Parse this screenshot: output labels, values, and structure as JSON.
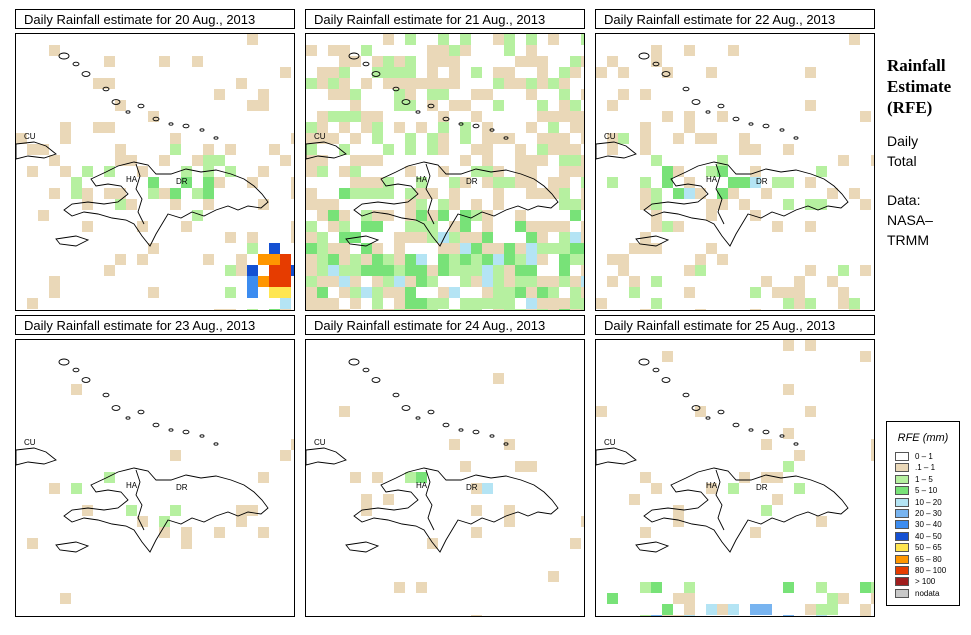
{
  "side": {
    "title_line1": "Rainfall",
    "title_line2": "Estimate",
    "title_line3": "(RFE)",
    "daily": "Daily",
    "total": "Total",
    "data_label": "Data:",
    "source_line1": "NASA–",
    "source_line2": "TRMM"
  },
  "legend": {
    "title": "RFE (mm)",
    "items": [
      {
        "label": "0 – 1",
        "color": "#ffffff"
      },
      {
        "label": ".1 – 1",
        "color": "#ead8b8"
      },
      {
        "label": "1 – 5",
        "color": "#b6f0a0"
      },
      {
        "label": "5 – 10",
        "color": "#78e278"
      },
      {
        "label": "10 – 20",
        "color": "#b4e4f4"
      },
      {
        "label": "20 – 30",
        "color": "#78b4f0"
      },
      {
        "label": "30 – 40",
        "color": "#3c8cf0"
      },
      {
        "label": "40 – 50",
        "color": "#1450d2"
      },
      {
        "label": "50 – 65",
        "color": "#ffe650"
      },
      {
        "label": "65 – 80",
        "color": "#ff9600"
      },
      {
        "label": "80 – 100",
        "color": "#e63c00"
      },
      {
        "label": "> 100",
        "color": "#a01e1e"
      },
      {
        "label": "nodata",
        "color": "#c8c8c8"
      }
    ]
  },
  "map_labels": {
    "cuba": "CU",
    "haiti": "HA",
    "dominican_republic": "DR"
  },
  "panels": [
    {
      "title": "Daily Rainfall estimate for  20 Aug., 2013",
      "seed": 11,
      "cover": 0.42,
      "wet_zone": "haiti-southeast",
      "intensity": "heavy"
    },
    {
      "title": "Daily Rainfall estimate for  21 Aug., 2013",
      "seed": 23,
      "cover": 0.7,
      "wet_zone": "widespread",
      "intensity": "moderate"
    },
    {
      "title": "Daily Rainfall estimate for  22 Aug., 2013",
      "seed": 37,
      "cover": 0.35,
      "wet_zone": "west",
      "intensity": "light"
    },
    {
      "title": "Daily Rainfall estimate for  23 Aug., 2013",
      "seed": 41,
      "cover": 0.2,
      "wet_zone": "island",
      "intensity": "light"
    },
    {
      "title": "Daily Rainfall estimate for  24 Aug., 2013",
      "seed": 53,
      "cover": 0.15,
      "wet_zone": "island",
      "intensity": "light"
    },
    {
      "title": "Daily Rainfall estimate for  25 Aug., 2013",
      "seed": 67,
      "cover": 0.25,
      "wet_zone": "south",
      "intensity": "moderate"
    }
  ]
}
